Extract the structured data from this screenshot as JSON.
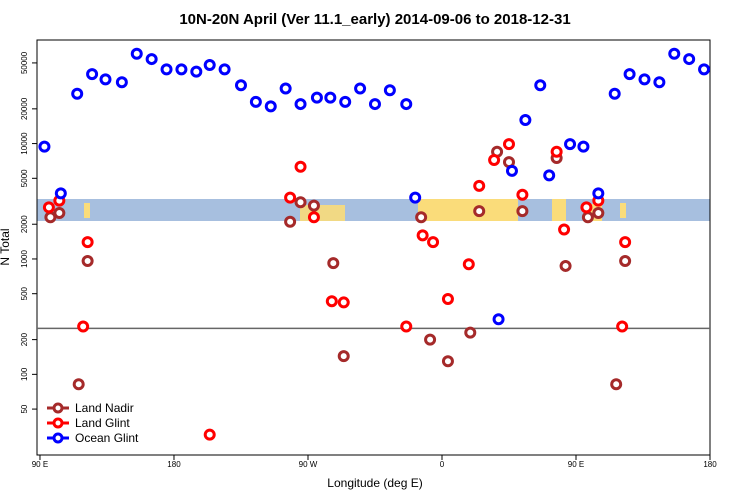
{
  "chart_data": {
    "type": "scatter",
    "title": "10N-20N April (Ver 11.1_early)   2014-09-06 to 2018-12-31",
    "x_label": "Longitude (deg E)",
    "y_label": "N Total",
    "xlim": [
      88,
      540
    ],
    "xticks": [
      {
        "value": 90,
        "label": "90 E"
      },
      180,
      {
        "value": 270,
        "label": "90 W"
      },
      {
        "value": 360,
        "label": "0"
      },
      {
        "value": 450,
        "label": "90 E"
      },
      {
        "value": 540,
        "label": "180"
      }
    ],
    "ylim": [
      20,
      79000
    ],
    "ylog": true,
    "yticks": [
      50,
      100,
      200,
      500,
      1000,
      2000,
      5000,
      10000,
      20000,
      50000
    ],
    "hline": 250,
    "legend": "bottom-left",
    "series": [
      {
        "name": "Land Nadir",
        "color": "#a52a2a",
        "x": [
          97,
          103,
          116,
          122,
          258,
          265,
          274,
          287,
          294,
          346,
          352,
          364,
          379,
          385,
          397,
          405,
          414,
          437,
          443,
          458,
          465,
          477,
          483
        ],
        "values": [
          2300,
          2500,
          82,
          960,
          2100,
          3100,
          2900,
          920,
          144,
          2300,
          200,
          130,
          230,
          2600,
          8500,
          6900,
          2600,
          7500,
          870,
          2300,
          2500,
          82,
          960
        ]
      },
      {
        "name": "Land Glint",
        "color": "#ff0000",
        "x": [
          96,
          103,
          119,
          122,
          204,
          258,
          265,
          274,
          286,
          294,
          336,
          347,
          354,
          364,
          378,
          385,
          395,
          405,
          414,
          437,
          442,
          457,
          465,
          481,
          483
        ],
        "values": [
          2800,
          3200,
          260,
          1400,
          30,
          3400,
          6300,
          2300,
          430,
          420,
          260,
          1600,
          1400,
          450,
          900,
          4300,
          7200,
          9900,
          3600,
          8500,
          1800,
          2800,
          3200,
          260,
          1400
        ]
      },
      {
        "name": "Ocean Glint",
        "color": "#0000ff",
        "x": [
          93,
          104,
          115,
          125,
          134,
          145,
          155,
          165,
          175,
          185,
          195,
          204,
          214,
          225,
          235,
          245,
          255,
          265,
          276,
          285,
          295,
          305,
          315,
          325,
          336,
          342,
          398,
          407,
          416,
          426,
          432,
          446,
          455,
          465,
          476,
          486,
          496,
          506,
          516,
          526,
          536
        ],
        "values": [
          9400,
          3700,
          27000,
          40000,
          36000,
          34000,
          60000,
          54000,
          44000,
          44000,
          42000,
          48000,
          44000,
          32000,
          23000,
          21000,
          30000,
          22000,
          25000,
          25000,
          23000,
          30000,
          22000,
          29000,
          22000,
          3400,
          300,
          5800,
          16000,
          32000,
          5300,
          9900,
          9400,
          3700,
          27000,
          40000,
          36000,
          34000,
          60000,
          54000,
          44000
        ]
      }
    ]
  }
}
